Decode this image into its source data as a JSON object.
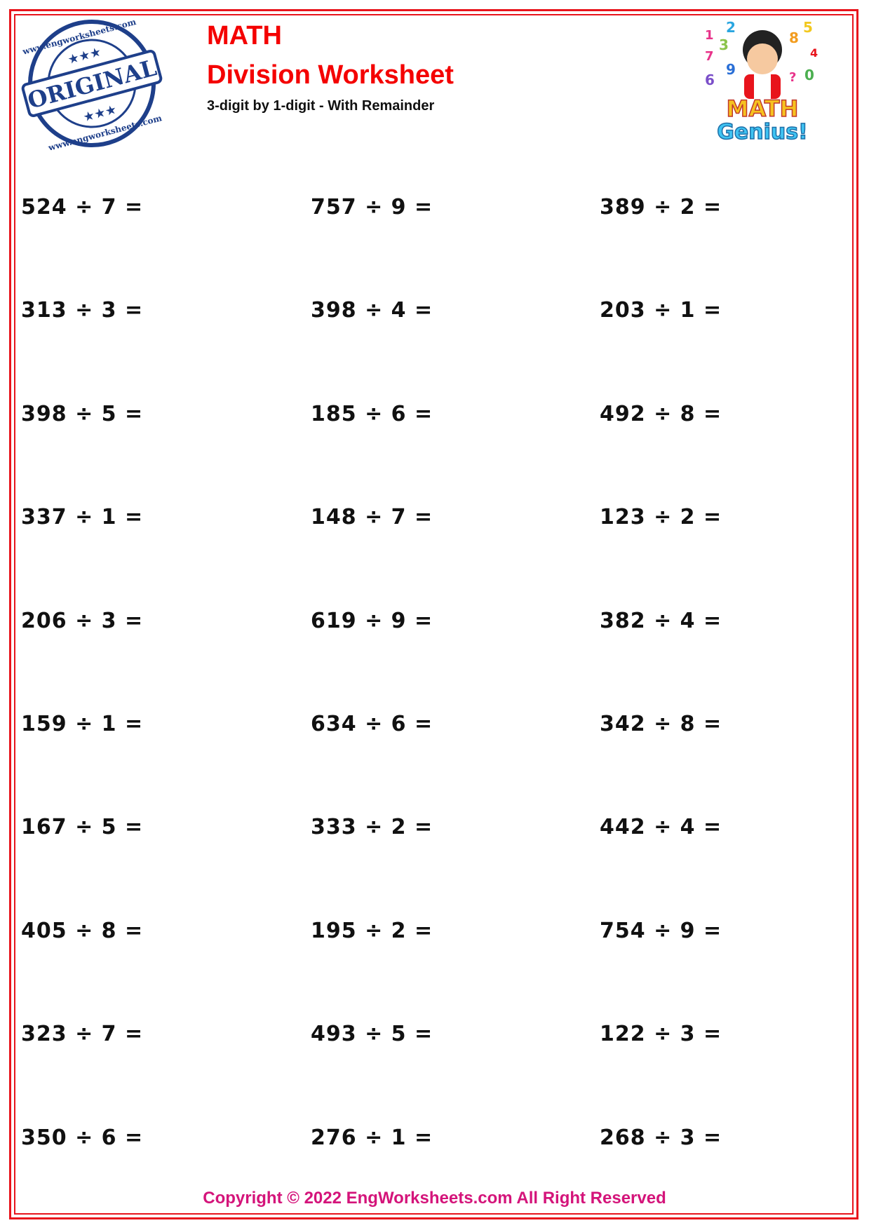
{
  "header": {
    "subject": "MATH",
    "title": "Division Worksheet",
    "subtitle": "3-digit by 1-digit - With Remainder",
    "stamp_text": "ORIGINAL",
    "stamp_ring_text": "www.engworksheets.com",
    "mascot_text": "MATH Genius!"
  },
  "problems": [
    [
      "524 ÷ 7 =",
      "757 ÷ 9 =",
      "389 ÷ 2 ="
    ],
    [
      "313 ÷ 3 =",
      "398 ÷ 4 =",
      "203 ÷ 1 ="
    ],
    [
      "398 ÷ 5 =",
      "185 ÷ 6 =",
      "492 ÷ 8 ="
    ],
    [
      "337 ÷ 1 =",
      "148 ÷ 7 =",
      "123 ÷ 2 ="
    ],
    [
      "206 ÷ 3 =",
      "619 ÷ 9 =",
      "382 ÷ 4 ="
    ],
    [
      "159 ÷ 1 =",
      "634 ÷ 6 =",
      "342 ÷ 8 ="
    ],
    [
      "167 ÷ 5 =",
      "333 ÷ 2 =",
      "442 ÷ 4 ="
    ],
    [
      "405 ÷ 8 =",
      "195 ÷ 2 =",
      "754 ÷ 9 ="
    ],
    [
      "323 ÷ 7 =",
      "493 ÷ 5 =",
      "122 ÷ 3 ="
    ],
    [
      "350 ÷ 6 =",
      "276 ÷ 1 =",
      "268 ÷ 3 ="
    ]
  ],
  "footer": {
    "copyright": "Copyright © 2022 EngWorksheets.com All Right Reserved"
  },
  "colors": {
    "border": "#e8141c",
    "title": "#f40000",
    "footer": "#d4147a",
    "stamp": "#1e3f8a"
  }
}
